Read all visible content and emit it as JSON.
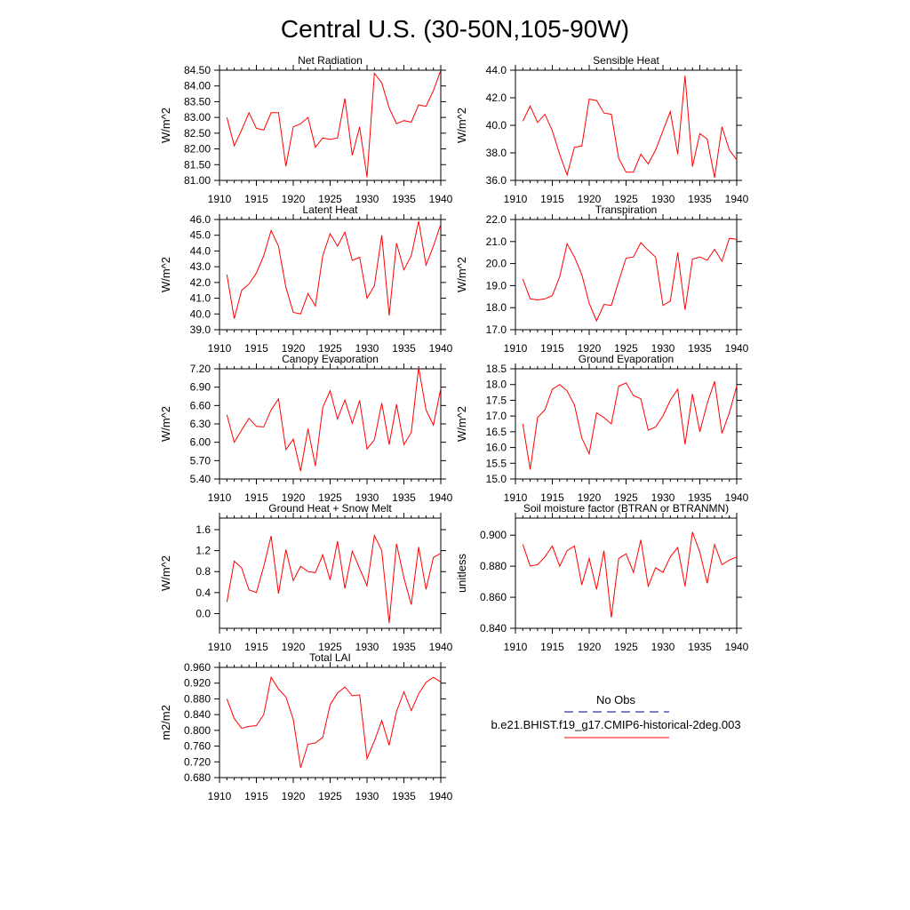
{
  "figure": {
    "title": "Central U.S. (30-50N,105-90W)"
  },
  "colors": {
    "model_line": "#ff0000",
    "obs_line": "#00008b",
    "axis": "#000000"
  },
  "legend": {
    "entries": [
      {
        "label": "No Obs",
        "style": "dashed",
        "color": "#00008b"
      },
      {
        "label": "b.e21.BHIST.f19_g17.CMIP6-historical-2deg.003",
        "style": "solid",
        "color": "#ff0000"
      }
    ]
  },
  "chart_data": [
    {
      "type": "line",
      "title": "Net Radiation",
      "xlabel": "",
      "ylabel": "W/m^2",
      "xlim": [
        1910,
        1940
      ],
      "xticks": [
        "1910",
        "1915",
        "1920",
        "1925",
        "1930",
        "1935",
        "1940"
      ],
      "ylim": [
        81.0,
        84.5
      ],
      "yticks": [
        "81.00",
        "81.50",
        "82.00",
        "82.50",
        "83.00",
        "83.50",
        "84.00",
        "84.50"
      ],
      "series": [
        {
          "name": "b.e21.BHIST.f19_g17.CMIP6-historical-2deg.003",
          "x": [
            1911,
            1912,
            1913,
            1914,
            1915,
            1916,
            1917,
            1918,
            1919,
            1920,
            1921,
            1922,
            1923,
            1924,
            1925,
            1926,
            1927,
            1928,
            1929,
            1930,
            1931,
            1932,
            1933,
            1934,
            1935,
            1936,
            1937,
            1938,
            1939,
            1940
          ],
          "y": [
            83.0,
            82.1,
            82.6,
            83.15,
            82.65,
            82.6,
            83.15,
            83.15,
            81.45,
            82.7,
            82.8,
            83.0,
            82.05,
            82.35,
            82.3,
            82.35,
            83.6,
            81.8,
            82.7,
            81.1,
            84.4,
            84.1,
            83.3,
            82.8,
            82.9,
            82.85,
            83.4,
            83.35,
            83.85,
            84.5
          ]
        }
      ]
    },
    {
      "type": "line",
      "title": "Sensible Heat",
      "xlabel": "",
      "ylabel": "W/m^2",
      "xlim": [
        1910,
        1940
      ],
      "xticks": [
        "1910",
        "1915",
        "1920",
        "1925",
        "1930",
        "1935",
        "1940"
      ],
      "ylim": [
        36.0,
        44.0
      ],
      "yticks": [
        "36.0",
        "38.0",
        "40.0",
        "42.0",
        "44.0"
      ],
      "series": [
        {
          "name": "b.e21.BHIST.f19_g17.CMIP6-historical-2deg.003",
          "x": [
            1911,
            1912,
            1913,
            1914,
            1915,
            1916,
            1917,
            1918,
            1919,
            1920,
            1921,
            1922,
            1923,
            1924,
            1925,
            1926,
            1927,
            1928,
            1929,
            1930,
            1931,
            1932,
            1933,
            1934,
            1935,
            1936,
            1937,
            1938,
            1939,
            1940
          ],
          "y": [
            40.3,
            41.4,
            40.2,
            40.8,
            39.6,
            37.9,
            36.4,
            38.4,
            38.5,
            41.9,
            41.8,
            40.9,
            40.8,
            37.6,
            36.6,
            36.6,
            37.9,
            37.2,
            38.2,
            39.6,
            41.0,
            37.9,
            43.6,
            37.0,
            39.4,
            39.0,
            36.2,
            39.9,
            38.2,
            37.5
          ]
        }
      ]
    },
    {
      "type": "line",
      "title": "Latent Heat",
      "xlabel": "",
      "ylabel": "W/m^2",
      "xlim": [
        1910,
        1940
      ],
      "xticks": [
        "1910",
        "1915",
        "1920",
        "1925",
        "1930",
        "1935",
        "1940"
      ],
      "ylim": [
        39.0,
        46.0
      ],
      "yticks": [
        "39.0",
        "40.0",
        "41.0",
        "42.0",
        "43.0",
        "44.0",
        "45.0",
        "46.0"
      ],
      "series": [
        {
          "name": "b.e21.BHIST.f19_g17.CMIP6-historical-2deg.003",
          "x": [
            1911,
            1912,
            1913,
            1914,
            1915,
            1916,
            1917,
            1918,
            1919,
            1920,
            1921,
            1922,
            1923,
            1924,
            1925,
            1926,
            1927,
            1928,
            1929,
            1930,
            1931,
            1932,
            1933,
            1934,
            1935,
            1936,
            1937,
            1938,
            1939,
            1940
          ],
          "y": [
            42.5,
            39.7,
            41.5,
            41.9,
            42.6,
            43.7,
            45.3,
            44.3,
            41.7,
            40.1,
            40.0,
            41.3,
            40.5,
            43.7,
            45.1,
            44.3,
            45.2,
            43.4,
            43.6,
            41.0,
            41.8,
            45.0,
            39.9,
            44.5,
            42.8,
            43.7,
            45.9,
            43.1,
            44.3,
            45.7
          ]
        }
      ]
    },
    {
      "type": "line",
      "title": "Transpiration",
      "xlabel": "",
      "ylabel": "W/m^2",
      "xlim": [
        1910,
        1940
      ],
      "xticks": [
        "1910",
        "1915",
        "1920",
        "1925",
        "1930",
        "1935",
        "1940"
      ],
      "ylim": [
        17.0,
        22.0
      ],
      "yticks": [
        "17.0",
        "18.0",
        "19.0",
        "20.0",
        "21.0",
        "22.0"
      ],
      "series": [
        {
          "name": "b.e21.BHIST.f19_g17.CMIP6-historical-2deg.003",
          "x": [
            1911,
            1912,
            1913,
            1914,
            1915,
            1916,
            1917,
            1918,
            1919,
            1920,
            1921,
            1922,
            1923,
            1924,
            1925,
            1926,
            1927,
            1928,
            1929,
            1930,
            1931,
            1932,
            1933,
            1934,
            1935,
            1936,
            1937,
            1938,
            1939,
            1940
          ],
          "y": [
            19.3,
            18.4,
            18.35,
            18.4,
            18.55,
            19.4,
            20.9,
            20.3,
            19.5,
            18.2,
            17.4,
            18.15,
            18.1,
            19.2,
            20.25,
            20.3,
            20.95,
            20.6,
            20.3,
            18.1,
            18.3,
            20.5,
            17.9,
            20.2,
            20.3,
            20.15,
            20.65,
            20.1,
            21.15,
            21.1
          ]
        }
      ]
    },
    {
      "type": "line",
      "title": "Canopy Evaporation",
      "xlabel": "",
      "ylabel": "W/m^2",
      "xlim": [
        1910,
        1940
      ],
      "xticks": [
        "1910",
        "1915",
        "1920",
        "1925",
        "1930",
        "1935",
        "1940"
      ],
      "ylim": [
        5.4,
        7.2
      ],
      "yticks": [
        "5.40",
        "5.70",
        "6.00",
        "6.30",
        "6.60",
        "6.90",
        "7.20"
      ],
      "series": [
        {
          "name": "b.e21.BHIST.f19_g17.CMIP6-historical-2deg.003",
          "x": [
            1911,
            1912,
            1913,
            1914,
            1915,
            1916,
            1917,
            1918,
            1919,
            1920,
            1921,
            1922,
            1923,
            1924,
            1925,
            1926,
            1927,
            1928,
            1929,
            1930,
            1931,
            1932,
            1933,
            1934,
            1935,
            1936,
            1937,
            1938,
            1939,
            1940
          ],
          "y": [
            6.45,
            6.0,
            6.2,
            6.39,
            6.26,
            6.25,
            6.53,
            6.71,
            5.88,
            6.05,
            5.53,
            6.22,
            5.61,
            6.57,
            6.84,
            6.38,
            6.69,
            6.31,
            6.68,
            5.89,
            6.04,
            6.64,
            5.96,
            6.62,
            5.96,
            6.16,
            7.22,
            6.53,
            6.28,
            6.88
          ]
        }
      ]
    },
    {
      "type": "line",
      "title": "Ground Evaporation",
      "xlabel": "",
      "ylabel": "W/m^2",
      "xlim": [
        1910,
        1940
      ],
      "xticks": [
        "1910",
        "1915",
        "1920",
        "1925",
        "1930",
        "1935",
        "1940"
      ],
      "ylim": [
        15.0,
        18.5
      ],
      "yticks": [
        "15.0",
        "15.5",
        "16.0",
        "16.5",
        "17.0",
        "17.5",
        "18.0",
        "18.5"
      ],
      "series": [
        {
          "name": "b.e21.BHIST.f19_g17.CMIP6-historical-2deg.003",
          "x": [
            1911,
            1912,
            1913,
            1914,
            1915,
            1916,
            1917,
            1918,
            1919,
            1920,
            1921,
            1922,
            1923,
            1924,
            1925,
            1926,
            1927,
            1928,
            1929,
            1930,
            1931,
            1932,
            1933,
            1934,
            1935,
            1936,
            1937,
            1938,
            1939,
            1940
          ],
          "y": [
            16.75,
            15.3,
            16.95,
            17.2,
            17.85,
            18.0,
            17.8,
            17.35,
            16.3,
            15.8,
            17.1,
            16.95,
            16.75,
            17.95,
            18.05,
            17.65,
            17.55,
            16.55,
            16.65,
            17.0,
            17.5,
            17.85,
            16.1,
            17.7,
            16.5,
            17.4,
            18.1,
            16.45,
            17.1,
            17.95
          ]
        }
      ]
    },
    {
      "type": "line",
      "title": "Ground Heat + Snow Melt",
      "xlabel": "",
      "ylabel": "W/m^2",
      "xlim": [
        1910,
        1940
      ],
      "xticks": [
        "1910",
        "1915",
        "1920",
        "1925",
        "1930",
        "1935",
        "1940"
      ],
      "ylim": [
        -0.28,
        1.82
      ],
      "yticks": [
        "0.0",
        "0.4",
        "0.8",
        "1.2",
        "1.6"
      ],
      "ytick_values": [
        0.0,
        0.4,
        0.8,
        1.2,
        1.6
      ],
      "series": [
        {
          "name": "b.e21.BHIST.f19_g17.CMIP6-historical-2deg.003",
          "x": [
            1911,
            1912,
            1913,
            1914,
            1915,
            1916,
            1917,
            1918,
            1919,
            1920,
            1921,
            1922,
            1923,
            1924,
            1925,
            1926,
            1927,
            1928,
            1929,
            1930,
            1931,
            1932,
            1933,
            1934,
            1935,
            1936,
            1937,
            1938,
            1939,
            1940
          ],
          "y": [
            0.22,
            1.0,
            0.87,
            0.45,
            0.4,
            0.9,
            1.48,
            0.38,
            1.22,
            0.63,
            0.9,
            0.8,
            0.78,
            1.12,
            0.64,
            1.38,
            0.48,
            1.19,
            0.86,
            0.53,
            1.49,
            1.2,
            -0.18,
            1.33,
            0.68,
            0.17,
            1.27,
            0.46,
            1.07,
            1.15
          ]
        }
      ]
    },
    {
      "type": "line",
      "title": "Soil moisture factor (BTRAN or BTRANMN)",
      "xlabel": "",
      "ylabel": "unitless",
      "xlim": [
        1910,
        1940
      ],
      "xticks": [
        "1910",
        "1915",
        "1920",
        "1925",
        "1930",
        "1935",
        "1940"
      ],
      "ylim": [
        0.84,
        0.911
      ],
      "yticks": [
        "0.840",
        "0.860",
        "0.880",
        "0.900"
      ],
      "ytick_values": [
        0.84,
        0.86,
        0.88,
        0.9
      ],
      "series": [
        {
          "name": "b.e21.BHIST.f19_g17.CMIP6-historical-2deg.003",
          "x": [
            1911,
            1912,
            1913,
            1914,
            1915,
            1916,
            1917,
            1918,
            1919,
            1920,
            1921,
            1922,
            1923,
            1924,
            1925,
            1926,
            1927,
            1928,
            1929,
            1930,
            1931,
            1932,
            1933,
            1934,
            1935,
            1936,
            1937,
            1938,
            1939,
            1940
          ],
          "y": [
            0.894,
            0.88,
            0.881,
            0.886,
            0.893,
            0.88,
            0.89,
            0.893,
            0.868,
            0.885,
            0.865,
            0.89,
            0.847,
            0.885,
            0.888,
            0.876,
            0.897,
            0.867,
            0.879,
            0.876,
            0.886,
            0.892,
            0.867,
            0.902,
            0.889,
            0.869,
            0.894,
            0.881,
            0.884,
            0.886
          ]
        }
      ]
    },
    {
      "type": "line",
      "title": "Total LAI",
      "xlabel": "",
      "ylabel": "m2/m2",
      "xlim": [
        1910,
        1940
      ],
      "xticks": [
        "1910",
        "1915",
        "1920",
        "1925",
        "1930",
        "1935",
        "1940"
      ],
      "ylim": [
        0.68,
        0.96
      ],
      "yticks": [
        "0.680",
        "0.720",
        "0.760",
        "0.800",
        "0.840",
        "0.880",
        "0.920",
        "0.960"
      ],
      "series": [
        {
          "name": "b.e21.BHIST.f19_g17.CMIP6-historical-2deg.003",
          "x": [
            1911,
            1912,
            1913,
            1914,
            1915,
            1916,
            1917,
            1918,
            1919,
            1920,
            1921,
            1922,
            1923,
            1924,
            1925,
            1926,
            1927,
            1928,
            1929,
            1930,
            1931,
            1932,
            1933,
            1934,
            1935,
            1936,
            1937,
            1938,
            1939,
            1940
          ],
          "y": [
            0.88,
            0.83,
            0.805,
            0.81,
            0.812,
            0.84,
            0.935,
            0.905,
            0.885,
            0.828,
            0.705,
            0.765,
            0.768,
            0.782,
            0.865,
            0.895,
            0.91,
            0.888,
            0.89,
            0.728,
            0.773,
            0.825,
            0.762,
            0.848,
            0.898,
            0.85,
            0.893,
            0.922,
            0.935,
            0.923
          ]
        }
      ]
    }
  ]
}
